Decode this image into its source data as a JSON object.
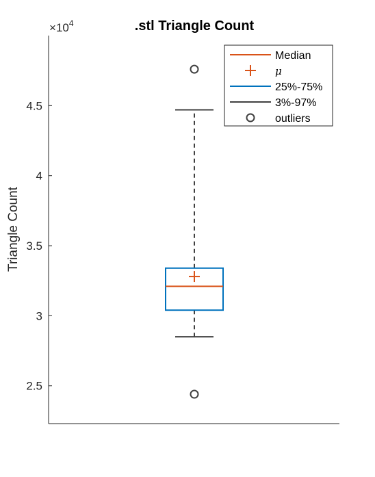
{
  "chart_data": {
    "type": "box",
    "title": ".stl Triangle Count",
    "ylabel": "Triangle Count",
    "xlabel": "",
    "y_exponent": {
      "times": "×",
      "base": "10",
      "power": "4"
    },
    "ylim": [
      22300,
      50000
    ],
    "yticks": [
      25000,
      30000,
      35000,
      40000,
      45000
    ],
    "ytick_labels": [
      "2.5",
      "3",
      "3.5",
      "4",
      "4.5"
    ],
    "grid": false,
    "legend_position": "top-right",
    "box": {
      "median": 32100,
      "mean": 32800,
      "q1": 30400,
      "q3": 33400,
      "whisker_low": 28500,
      "whisker_high": 44700,
      "outliers": [
        47600,
        24400
      ]
    },
    "legend": [
      {
        "key": "median",
        "label": "Median",
        "color": "#D95319"
      },
      {
        "key": "mean",
        "label": "μ",
        "color": "#D95319"
      },
      {
        "key": "iqr",
        "label": "25%-75%",
        "color": "#0072BD"
      },
      {
        "key": "range",
        "label": "3%-97%",
        "color": "#404040"
      },
      {
        "key": "outliers",
        "label": "outliers",
        "color": "#404040"
      }
    ],
    "colors": {
      "median": "#D95319",
      "mean": "#D95319",
      "box": "#0072BD",
      "whisker": "#404040",
      "outlier": "#404040",
      "axis": "#262626"
    }
  }
}
